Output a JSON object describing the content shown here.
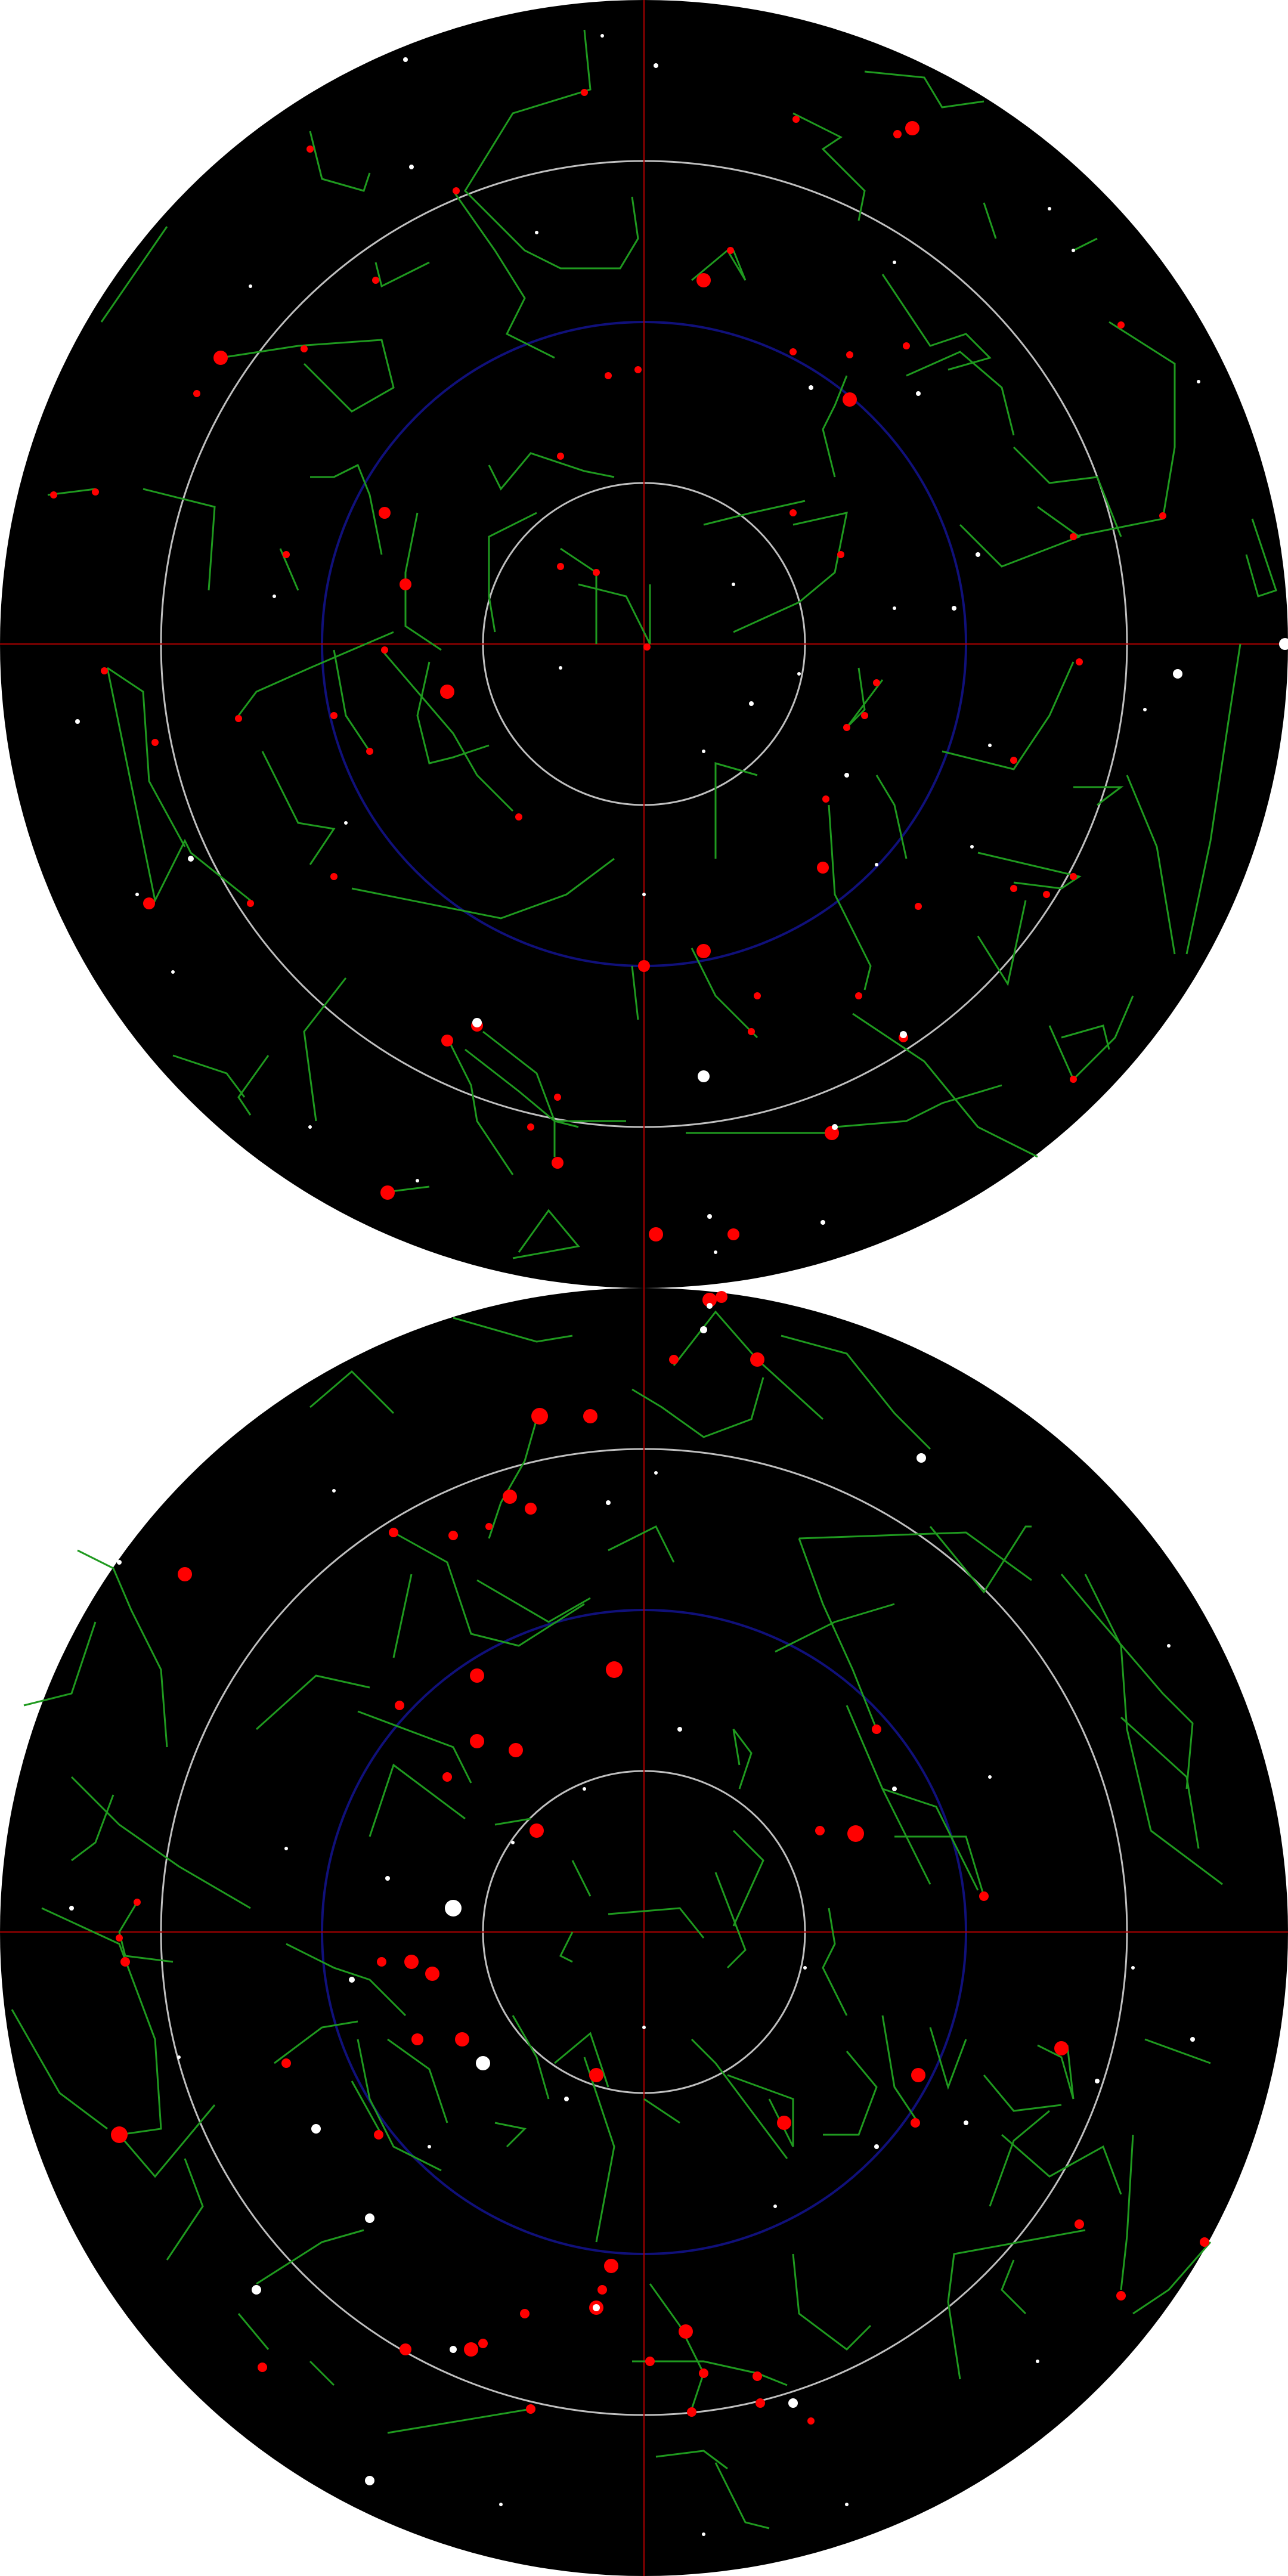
{
  "colors": {
    "background": "#ffffff",
    "sky": "#000000",
    "graticule": "#bfbfbf",
    "equator": "#10107a",
    "axis": "#aa0000",
    "constellation_lines": "#1f9a1f",
    "named_stars": "#ff0000",
    "field_stars": "#ffffff"
  },
  "hemispheres": [
    {
      "id": "north",
      "pole": "north",
      "dec_circles": [
        60,
        30,
        0,
        -30
      ]
    },
    {
      "id": "south",
      "pole": "south",
      "dec_circles": [
        -60,
        -30,
        0,
        30
      ]
    }
  ]
}
